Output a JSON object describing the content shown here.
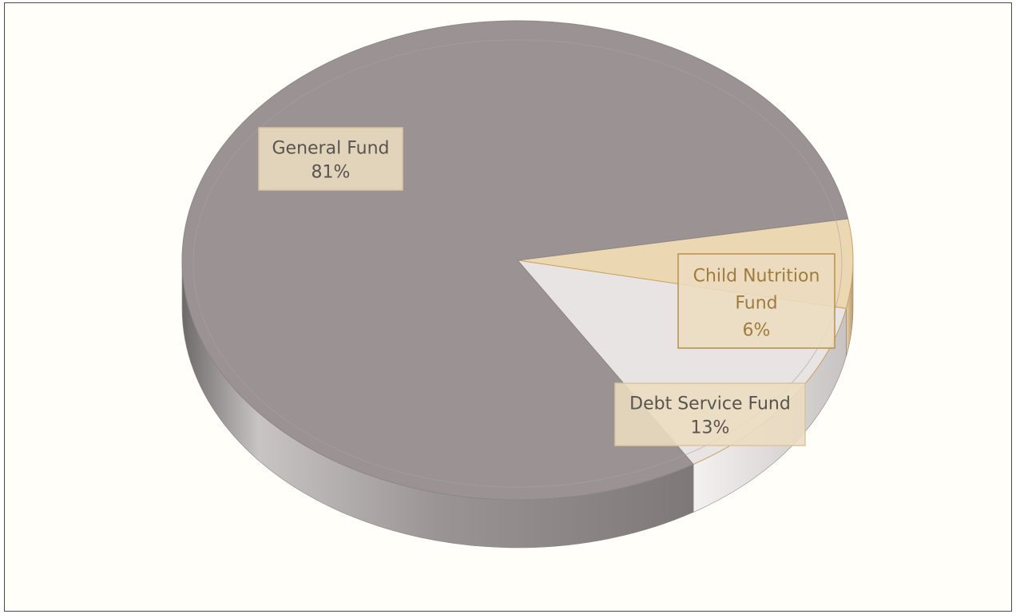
{
  "chart_data": {
    "type": "pie",
    "title": "",
    "style": "3d-pie",
    "slices": [
      {
        "name": "General Fund",
        "value": 81,
        "label": "81%",
        "color": "#9b9393",
        "side_color": "#8e8888",
        "label_lines": [
          "General Fund",
          "81%"
        ],
        "text_color": "#5a5450"
      },
      {
        "name": "Debt Service Fund",
        "value": 13,
        "label": "13%",
        "color": "#e9e4e4",
        "side_color": "#cfcaca",
        "label_lines": [
          "Debt Service Fund",
          "13%"
        ],
        "text_color": "#5a5450"
      },
      {
        "name": "Child Nutrition Fund",
        "value": 6,
        "label": "6%",
        "color": "#ecd7b3",
        "side_color": "#d9c09a",
        "label_lines": [
          "Child Nutrition",
          "Fund",
          "6%"
        ],
        "text_color": "#a07c3c"
      }
    ],
    "colors": {
      "background": "#fffef8",
      "border": "#4a4a4a",
      "label_box": "#ecdcc0",
      "label_border_nutrition": "#b8904a"
    }
  }
}
